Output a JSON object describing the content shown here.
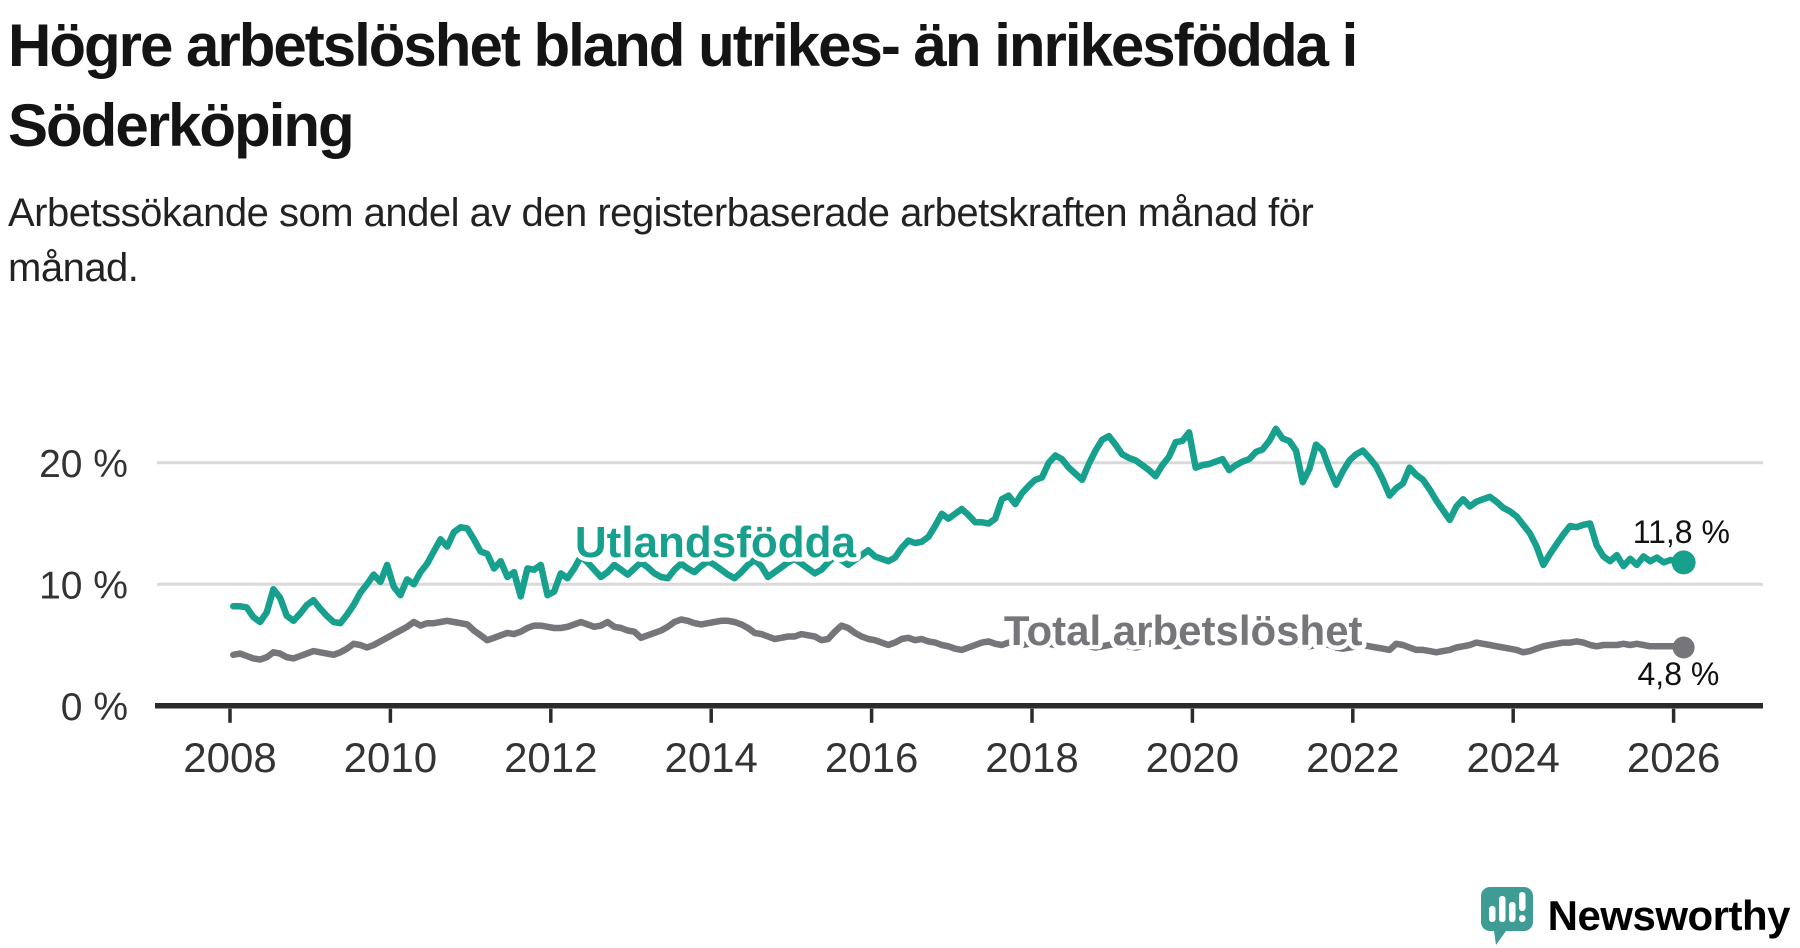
{
  "header": {
    "title": "Högre arbetslöshet bland utrikes- än inrikesfödda i Söderköping",
    "title_lines": [
      "Högre arbetslöshet bland utrikes- än inrikesfödda i",
      "Söderköping"
    ],
    "subtitle": "Arbetssökande som andel av den registerbaserade arbetskraften månad för månad.",
    "subtitle_lines": [
      "Arbetssökande som andel av den registerbaserade arbetskraften månad för",
      "månad."
    ]
  },
  "colors": {
    "foreign_line": "#17A08E",
    "total_line": "#76767A",
    "grid": "#D9D9D9",
    "axis": "#2B2B2B",
    "tick_label": "#333333",
    "value_label": "#111111",
    "background": "#FFFFFF",
    "logo_teal": "#3E9C95"
  },
  "chart_data": {
    "type": "line",
    "title": "Högre arbetslöshet bland utrikes- än inrikesfödda i Söderköping",
    "x_unit": "monthly",
    "x_start": "2008-01",
    "x_end": "2026-02",
    "xlim": [
      2007.05,
      2027.1
    ],
    "ylim": [
      0,
      24.5
    ],
    "grid": "horizontal-only",
    "legend": "inline-labels",
    "x_tick_years": [
      2008,
      2010,
      2012,
      2014,
      2016,
      2018,
      2020,
      2022,
      2024,
      2026
    ],
    "x_tick_labels": [
      "2008",
      "2010",
      "2012",
      "2014",
      "2016",
      "2018",
      "2020",
      "2022",
      "2024",
      "2026"
    ],
    "y_ticks": [
      {
        "value": 0,
        "label": "0 %"
      },
      {
        "value": 10,
        "label": "10 %"
      },
      {
        "value": 20,
        "label": "20 %"
      }
    ],
    "series": [
      {
        "name": "Utlandsfödda",
        "color": "#17A08E",
        "label": {
          "text": "Utlandsfödda",
          "x_year": 2012.3,
          "y_value": 12.25,
          "font_size": 44
        },
        "end_label": {
          "text": "11,8 %",
          "x_year": 2025.49,
          "y_value": 13.4,
          "font_size": 32
        },
        "end_value": 11.8,
        "monthly_values": [
          8.2,
          8.2,
          8.1,
          7.3,
          6.9,
          7.7,
          9.6,
          8.9,
          7.4,
          7.0,
          7.6,
          8.3,
          8.7,
          8.0,
          7.4,
          6.9,
          6.8,
          7.5,
          8.3,
          9.3,
          10.0,
          10.8,
          10.2,
          11.6,
          9.8,
          9.1,
          10.4,
          10.0,
          11.0,
          11.7,
          12.7,
          13.7,
          13.1,
          14.3,
          14.7,
          14.6,
          13.7,
          12.7,
          12.5,
          11.3,
          11.9,
          10.6,
          11.0,
          9.0,
          11.3,
          11.2,
          11.6,
          9.1,
          9.4,
          10.9,
          10.5,
          11.3,
          12.3,
          11.8,
          11.2,
          10.6,
          11.0,
          11.6,
          11.2,
          10.8,
          11.3,
          11.8,
          11.4,
          10.9,
          10.6,
          10.5,
          11.2,
          11.7,
          11.3,
          11.0,
          11.5,
          11.9,
          11.6,
          11.2,
          10.8,
          10.5,
          11.0,
          11.6,
          12.0,
          11.5,
          10.6,
          11.0,
          11.4,
          11.8,
          12.1,
          11.7,
          11.3,
          10.9,
          11.2,
          11.8,
          12.3,
          12.0,
          11.6,
          12.0,
          12.4,
          12.8,
          12.3,
          12.1,
          11.9,
          12.2,
          13.0,
          13.6,
          13.4,
          13.5,
          13.9,
          14.8,
          15.8,
          15.4,
          15.8,
          16.2,
          15.7,
          15.1,
          15.1,
          15.0,
          15.4,
          17.0,
          17.3,
          16.6,
          17.5,
          18.1,
          18.6,
          18.8,
          20.0,
          20.6,
          20.3,
          19.6,
          19.1,
          18.6,
          19.9,
          21.0,
          21.9,
          22.2,
          21.5,
          20.7,
          20.4,
          20.2,
          19.8,
          19.4,
          18.9,
          19.8,
          20.5,
          21.7,
          21.8,
          22.5,
          19.6,
          19.8,
          19.9,
          20.1,
          20.3,
          19.4,
          19.8,
          20.1,
          20.3,
          20.9,
          21.1,
          21.8,
          22.8,
          22.0,
          21.8,
          21.0,
          18.4,
          19.5,
          21.5,
          21.0,
          19.5,
          18.2,
          19.3,
          20.2,
          20.7,
          21.0,
          20.4,
          19.7,
          18.6,
          17.3,
          17.9,
          18.3,
          19.6,
          19.0,
          18.6,
          17.8,
          16.9,
          16.1,
          15.3,
          16.4,
          17.0,
          16.4,
          16.8,
          17.0,
          17.2,
          16.8,
          16.3,
          16.0,
          15.6,
          14.9,
          14.2,
          13.1,
          11.6,
          12.5,
          13.3,
          14.1,
          14.8,
          14.7,
          14.9,
          15.0,
          13.2,
          12.3,
          11.9,
          12.4,
          11.5,
          12.1,
          11.6,
          12.3,
          11.9,
          12.2,
          11.8,
          12.0,
          11.9,
          11.8
        ]
      },
      {
        "name": "Total arbetslöshet",
        "color": "#76767A",
        "label": {
          "text": "Total arbetslöshet",
          "x_year": 2017.65,
          "y_value": 5.0,
          "font_size": 42
        },
        "end_label": {
          "text": "4,8 %",
          "x_year": 2025.55,
          "y_value": 1.7,
          "font_size": 32
        },
        "end_value": 4.8,
        "monthly_values": [
          4.2,
          4.3,
          4.1,
          3.9,
          3.8,
          4.0,
          4.4,
          4.3,
          4.0,
          3.9,
          4.1,
          4.3,
          4.5,
          4.4,
          4.3,
          4.2,
          4.4,
          4.7,
          5.1,
          5.0,
          4.8,
          5.0,
          5.3,
          5.6,
          5.9,
          6.2,
          6.5,
          6.9,
          6.6,
          6.8,
          6.8,
          6.9,
          7.0,
          6.9,
          6.8,
          6.7,
          6.2,
          5.8,
          5.4,
          5.6,
          5.8,
          6.0,
          5.9,
          6.1,
          6.4,
          6.6,
          6.6,
          6.5,
          6.4,
          6.4,
          6.5,
          6.7,
          6.9,
          6.7,
          6.5,
          6.6,
          6.9,
          6.5,
          6.4,
          6.2,
          6.1,
          5.6,
          5.8,
          6.0,
          6.2,
          6.5,
          6.9,
          7.1,
          7.0,
          6.8,
          6.7,
          6.8,
          6.9,
          7.0,
          7.0,
          6.9,
          6.7,
          6.4,
          6.0,
          5.9,
          5.7,
          5.5,
          5.6,
          5.7,
          5.7,
          5.9,
          5.8,
          5.7,
          5.4,
          5.5,
          6.1,
          6.6,
          6.4,
          6.0,
          5.7,
          5.5,
          5.4,
          5.2,
          5.0,
          5.2,
          5.5,
          5.6,
          5.4,
          5.5,
          5.3,
          5.2,
          5.0,
          4.9,
          4.7,
          4.6,
          4.8,
          5.0,
          5.2,
          5.3,
          5.1,
          5.0,
          5.2,
          5.1,
          5.0,
          5.1,
          5.2,
          5.3,
          5.1,
          5.0,
          4.9,
          5.0,
          5.2,
          5.1,
          4.9,
          4.8,
          4.9,
          5.0,
          5.1,
          5.0,
          4.9,
          4.8,
          4.9,
          5.1,
          5.3,
          5.2,
          5.0,
          4.9,
          5.0,
          5.1,
          5.2,
          5.3,
          5.5,
          5.8,
          5.9,
          6.0,
          5.9,
          5.8,
          5.6,
          5.5,
          5.4,
          5.3,
          5.4,
          5.3,
          5.2,
          5.1,
          5.0,
          4.9,
          5.0,
          5.1,
          5.0,
          4.8,
          4.7,
          4.8,
          4.9,
          5.0,
          4.9,
          4.8,
          4.7,
          4.6,
          5.1,
          5.0,
          4.8,
          4.6,
          4.6,
          4.5,
          4.4,
          4.5,
          4.6,
          4.8,
          4.9,
          5.0,
          5.2,
          5.1,
          5.0,
          4.9,
          4.8,
          4.7,
          4.6,
          4.4,
          4.5,
          4.7,
          4.9,
          5.0,
          5.1,
          5.2,
          5.2,
          5.3,
          5.2,
          5.0,
          4.9,
          5.0,
          5.0,
          5.0,
          5.1,
          5.0,
          5.1,
          5.0,
          4.9,
          4.9,
          4.9,
          4.9,
          4.9,
          4.8
        ]
      }
    ]
  },
  "logo": {
    "name": "Newsworthy",
    "icon": "newsworthy-speech-bubble-bar-chart-icon"
  }
}
